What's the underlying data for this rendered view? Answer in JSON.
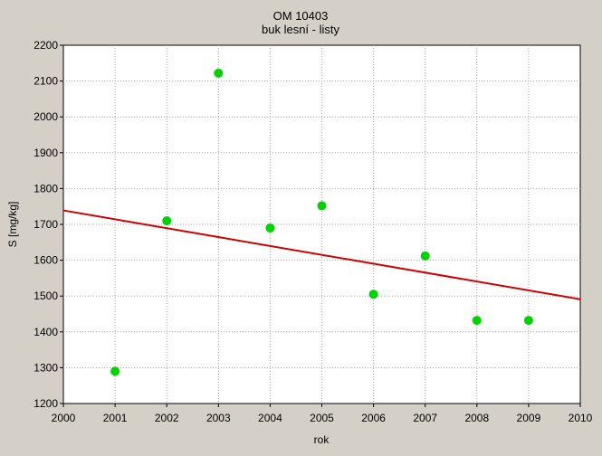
{
  "chart_data": {
    "type": "scatter",
    "title": "OM 10403",
    "subtitle": "buk lesní - listy",
    "xlabel": "rok",
    "ylabel": "S [mg/kg]",
    "xlim": [
      2000,
      2010
    ],
    "ylim": [
      1200,
      2200
    ],
    "xticks": [
      2000,
      2001,
      2002,
      2003,
      2004,
      2005,
      2006,
      2007,
      2008,
      2009,
      2010
    ],
    "yticks": [
      1200,
      1300,
      1400,
      1500,
      1600,
      1700,
      1800,
      1900,
      2000,
      2100,
      2200
    ],
    "grid": true,
    "points": [
      {
        "x": 2001,
        "y": 1290
      },
      {
        "x": 2002,
        "y": 1710
      },
      {
        "x": 2003,
        "y": 2122
      },
      {
        "x": 2004,
        "y": 1690
      },
      {
        "x": 2005,
        "y": 1752
      },
      {
        "x": 2006,
        "y": 1505
      },
      {
        "x": 2007,
        "y": 1612
      },
      {
        "x": 2008,
        "y": 1432
      },
      {
        "x": 2009,
        "y": 1432
      }
    ],
    "trendline": {
      "x": [
        2000,
        2010
      ],
      "y": [
        1739,
        1491
      ]
    },
    "colors": {
      "points": "#00d200",
      "trendline": "#d00000",
      "plot_bg": "#ffffff",
      "grid": "#a0a0a0"
    }
  }
}
